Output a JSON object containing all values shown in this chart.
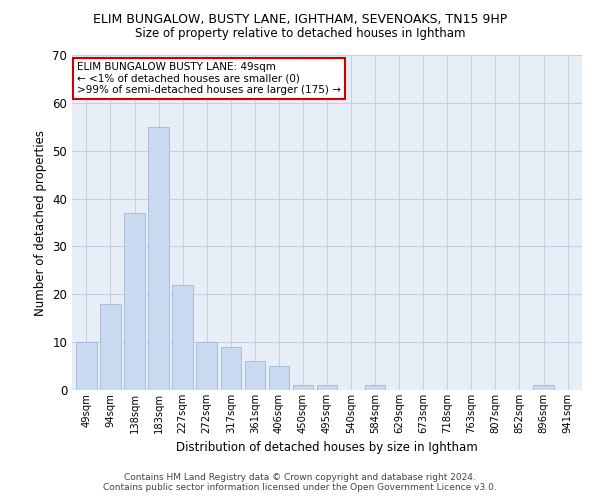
{
  "title": "ELIM BUNGALOW, BUSTY LANE, IGHTHAM, SEVENOAKS, TN15 9HP",
  "subtitle": "Size of property relative to detached houses in Ightham",
  "xlabel": "Distribution of detached houses by size in Ightham",
  "ylabel": "Number of detached properties",
  "bar_color": "#c9d9f0",
  "bar_edge_color": "#a0b8d8",
  "categories": [
    "49sqm",
    "94sqm",
    "138sqm",
    "183sqm",
    "227sqm",
    "272sqm",
    "317sqm",
    "361sqm",
    "406sqm",
    "450sqm",
    "495sqm",
    "540sqm",
    "584sqm",
    "629sqm",
    "673sqm",
    "718sqm",
    "763sqm",
    "807sqm",
    "852sqm",
    "896sqm",
    "941sqm"
  ],
  "values": [
    10,
    18,
    37,
    55,
    22,
    10,
    9,
    6,
    5,
    1,
    1,
    0,
    1,
    0,
    0,
    0,
    0,
    0,
    0,
    1,
    0
  ],
  "ylim": [
    0,
    70
  ],
  "yticks": [
    0,
    10,
    20,
    30,
    40,
    50,
    60,
    70
  ],
  "annotation_box_text": [
    "ELIM BUNGALOW BUSTY LANE: 49sqm",
    "← <1% of detached houses are smaller (0)",
    ">99% of semi-detached houses are larger (175) →"
  ],
  "footer_line1": "Contains HM Land Registry data © Crown copyright and database right 2024.",
  "footer_line2": "Contains public sector information licensed under the Open Government Licence v3.0.",
  "background_color": "#ffffff",
  "ax_background_color": "#e8eef8",
  "grid_color": "#c8d0e0",
  "annotation_box_color": "#ffffff",
  "annotation_box_edge_color": "#cc0000"
}
